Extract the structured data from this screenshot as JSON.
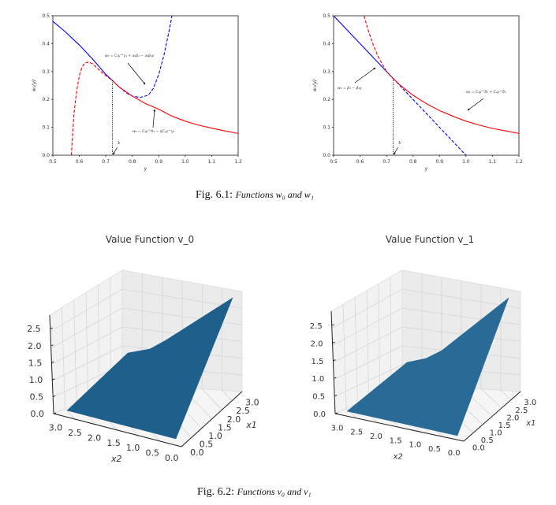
{
  "figure1": {
    "caption_label": "Fig. 6.1:",
    "caption_text": "Functions w₀ and w₁"
  },
  "figure2": {
    "caption_label": "Fig. 6.2:",
    "caption_text": "Functions v₀ and v₁"
  },
  "chart_data": [
    {
      "type": "line",
      "xlabel": "y",
      "ylabel": "w₀(y)",
      "xlim": [
        0.5,
        1.2
      ],
      "ylim": [
        0,
        0.5
      ],
      "xticks": [
        "0.5",
        "0.6",
        "0.7",
        "0.8",
        "0.9",
        "1.0",
        "1.1",
        "1.2"
      ],
      "yticks": [
        "0.0",
        "0.1",
        "0.2",
        "0.3",
        "0.4",
        "0.5"
      ],
      "grid": false,
      "series": [
        {
          "color": "#0000ff",
          "dash": false,
          "points": [
            [
              0.5,
              0.48
            ],
            [
              0.55,
              0.44
            ],
            [
              0.6,
              0.395
            ],
            [
              0.65,
              0.345
            ],
            [
              0.7,
              0.29
            ],
            [
              0.725,
              0.268
            ]
          ]
        },
        {
          "color": "#0000ff",
          "dash": true,
          "points": [
            [
              0.725,
              0.268
            ],
            [
              0.75,
              0.245
            ],
            [
              0.78,
              0.222
            ],
            [
              0.8,
              0.212
            ],
            [
              0.83,
              0.207
            ],
            [
              0.86,
              0.215
            ],
            [
              0.88,
              0.24
            ],
            [
              0.9,
              0.29
            ],
            [
              0.92,
              0.36
            ],
            [
              0.94,
              0.45
            ],
            [
              0.95,
              0.5
            ]
          ]
        },
        {
          "color": "#ff0000",
          "dash": false,
          "points": [
            [
              0.725,
              0.268
            ],
            [
              0.75,
              0.245
            ],
            [
              0.8,
              0.212
            ],
            [
              0.85,
              0.185
            ],
            [
              0.9,
              0.165
            ],
            [
              0.95,
              0.14
            ],
            [
              1.0,
              0.122
            ],
            [
              1.05,
              0.108
            ],
            [
              1.1,
              0.097
            ],
            [
              1.15,
              0.087
            ],
            [
              1.2,
              0.078
            ]
          ]
        },
        {
          "color": "#ff0000",
          "dash": true,
          "points": [
            [
              0.57,
              0
            ],
            [
              0.575,
              0.08
            ],
            [
              0.58,
              0.15
            ],
            [
              0.59,
              0.23
            ],
            [
              0.6,
              0.285
            ],
            [
              0.61,
              0.315
            ],
            [
              0.62,
              0.33
            ],
            [
              0.635,
              0.334
            ],
            [
              0.65,
              0.328
            ],
            [
              0.67,
              0.31
            ],
            [
              0.7,
              0.285
            ],
            [
              0.725,
              0.268
            ]
          ]
        }
      ],
      "k": {
        "label": "k",
        "x": 0.725,
        "y": 0.268
      },
      "annotations": [
        "w₀ = C₁y^γ₁ + a₀β₁ − a₀β₀y",
        "w₀ = C₂y^δ₂ − ηC₂y^γ₁"
      ]
    },
    {
      "type": "line",
      "xlabel": "y",
      "ylabel": "w₁(y)",
      "xlim": [
        0.5,
        1.2
      ],
      "ylim": [
        0,
        0.5
      ],
      "xticks": [
        "0.5",
        "0.6",
        "0.7",
        "0.8",
        "0.9",
        "1.0",
        "1.1",
        "1.2"
      ],
      "yticks": [
        "0.0",
        "0.1",
        "0.2",
        "0.3",
        "0.4",
        "0.5"
      ],
      "grid": false,
      "series": [
        {
          "color": "#0000ff",
          "dash": false,
          "points": [
            [
              0.5,
              0.5
            ],
            [
              0.725,
              0.275
            ]
          ]
        },
        {
          "color": "#0000ff",
          "dash": true,
          "points": [
            [
              0.725,
              0.275
            ],
            [
              1.0,
              0
            ]
          ]
        },
        {
          "color": "#ff0000",
          "dash": true,
          "points": [
            [
              0.615,
              0.5
            ],
            [
              0.63,
              0.45
            ],
            [
              0.65,
              0.395
            ],
            [
              0.67,
              0.35
            ],
            [
              0.7,
              0.3
            ],
            [
              0.725,
              0.275
            ]
          ]
        },
        {
          "color": "#ff0000",
          "dash": false,
          "points": [
            [
              0.725,
              0.275
            ],
            [
              0.75,
              0.252
            ],
            [
              0.8,
              0.215
            ],
            [
              0.85,
              0.185
            ],
            [
              0.9,
              0.16
            ],
            [
              0.95,
              0.14
            ],
            [
              1.0,
              0.122
            ],
            [
              1.05,
              0.108
            ],
            [
              1.1,
              0.096
            ],
            [
              1.15,
              0.087
            ],
            [
              1.2,
              0.078
            ]
          ]
        }
      ],
      "k": {
        "label": "k",
        "x": 0.725,
        "y": 0.275
      },
      "annotations": [
        "w₁ = β₁ − β₀y",
        "w₁ = C₁y^δ₁ + C₂y^δ₂"
      ]
    },
    {
      "type": "surface",
      "title": "Value Function v_0",
      "xlabel": "x1",
      "ylabel": "x2",
      "zticks": [
        "0.0",
        "0.5",
        "1.0",
        "1.5",
        "2.0",
        "2.5"
      ],
      "x1ticks": [
        "0.0",
        "0.5",
        "1.0",
        "1.5",
        "2.0",
        "2.5",
        "3.0"
      ],
      "x2ticks": [
        "3.0",
        "2.5",
        "2.0",
        "1.5",
        "1.0",
        "0.5",
        "0.0"
      ],
      "surface_color": "#1f5f8b"
    },
    {
      "type": "surface",
      "title": "Value Function v_1",
      "xlabel": "x1",
      "ylabel": "x2",
      "zticks": [
        "0.0",
        "0.5",
        "1.0",
        "1.5",
        "2.0",
        "2.5"
      ],
      "x1ticks": [
        "0.0",
        "0.5",
        "1.0",
        "1.5",
        "2.0",
        "2.5",
        "3.0"
      ],
      "x2ticks": [
        "3.0",
        "2.5",
        "2.0",
        "1.5",
        "1.0",
        "0.5",
        "0.0"
      ],
      "surface_color": "#2a6a96"
    }
  ]
}
